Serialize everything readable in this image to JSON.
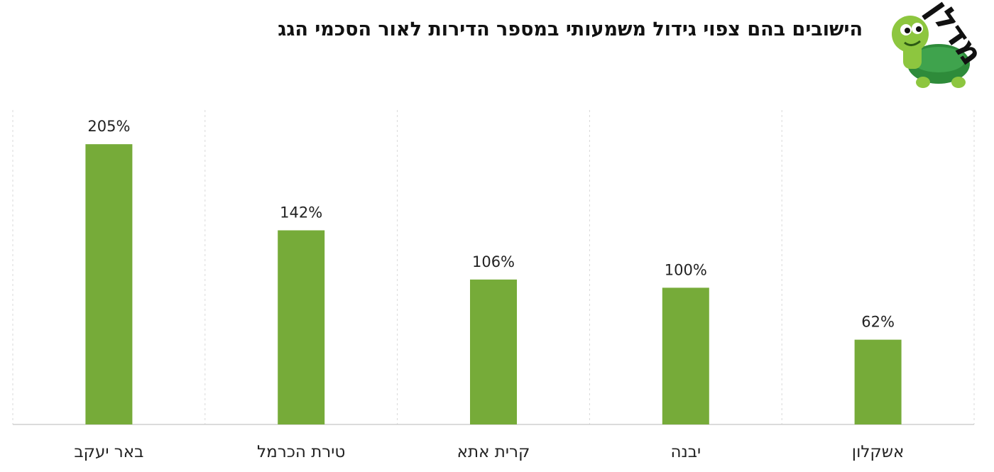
{
  "title": "הישובים בהם צפוי גידול משמעותי במספר הדירות לאור הסכמי הגג",
  "logo_text": "מדלן",
  "colors": {
    "bar": "#76ab39",
    "turtle_body": "#8dc63f",
    "turtle_shell": "#2e8b3a"
  },
  "chart_data": {
    "type": "bar",
    "title": "הישובים בהם צפוי גידול משמעותי במספר הדירות לאור הסכמי הגג",
    "categories": [
      "באר יעקב",
      "טירת הכרמל",
      "קרית אתא",
      "יבנה",
      "אשקלון"
    ],
    "values": [
      205,
      142,
      106,
      100,
      62
    ],
    "value_labels": [
      "205%",
      "142%",
      "106%",
      "100%",
      "62%"
    ],
    "unit": "%",
    "ylim": [
      0,
      230
    ],
    "grid": "vertical dashed separators",
    "legend": "none"
  }
}
